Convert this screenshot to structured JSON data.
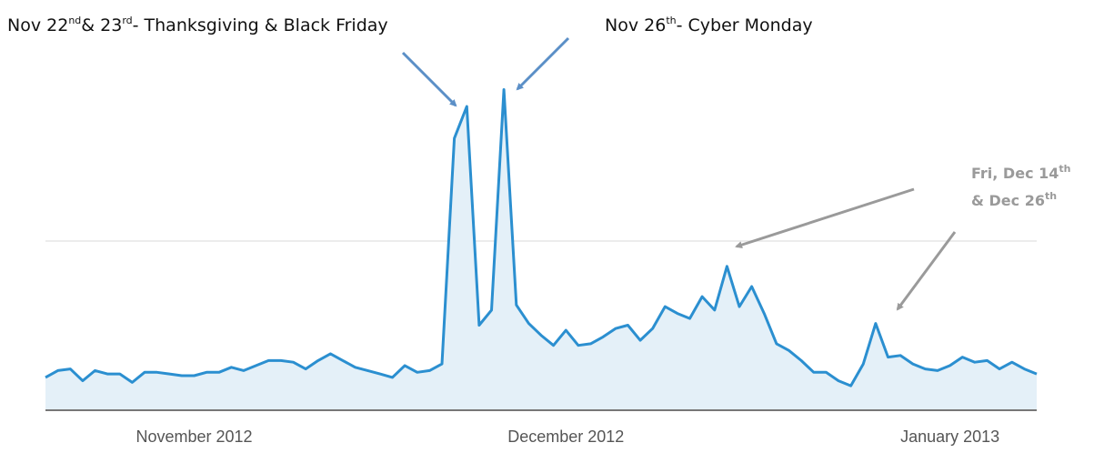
{
  "chart_data": {
    "type": "line",
    "annotations": [
      {
        "text": [
          "Nov 22",
          "nd",
          "& 23",
          "rd",
          "- Thanksgiving & Black Friday"
        ]
      },
      {
        "text": [
          "Nov 26",
          "th",
          "- Cyber Monday"
        ]
      },
      {
        "text": [
          "Fri, Dec 14",
          "th"
        ]
      },
      {
        "text": [
          "& Dec 26",
          "th"
        ]
      }
    ],
    "categories": [
      null,
      null,
      null,
      null,
      null,
      null,
      null,
      null,
      null,
      null,
      null,
      null,
      "November 2012",
      null,
      null,
      null,
      null,
      null,
      null,
      null,
      null,
      null,
      null,
      null,
      null,
      null,
      null,
      null,
      null,
      null,
      null,
      null,
      null,
      null,
      null,
      null,
      null,
      null,
      null,
      null,
      null,
      null,
      "December 2012",
      null,
      null,
      null,
      null,
      null,
      null,
      null,
      null,
      null,
      null,
      null,
      null,
      null,
      null,
      null,
      null,
      null,
      null,
      null,
      null,
      null,
      null,
      null,
      null,
      null,
      null,
      null,
      null,
      null,
      null,
      "January 2013",
      null,
      null,
      null,
      null,
      null,
      null,
      null
    ],
    "values": [
      19,
      23,
      24,
      17,
      23,
      21,
      21,
      16,
      22,
      22,
      21,
      20,
      20,
      22,
      22,
      25,
      23,
      26,
      29,
      29,
      28,
      24,
      29,
      33,
      29,
      25,
      23,
      21,
      19,
      26,
      22,
      23,
      27,
      161,
      180,
      50,
      59,
      190,
      62,
      51,
      44,
      38,
      47,
      38,
      39,
      43,
      48,
      50,
      41,
      48,
      61,
      57,
      54,
      67,
      59,
      85,
      61,
      73,
      57,
      39,
      35,
      29,
      22,
      22,
      17,
      14,
      27,
      51,
      31,
      32,
      27,
      24,
      23,
      26,
      31,
      28,
      29,
      24,
      28,
      24,
      21
    ],
    "color": "#2b8fd0",
    "ylim": [
      0,
      200
    ]
  }
}
